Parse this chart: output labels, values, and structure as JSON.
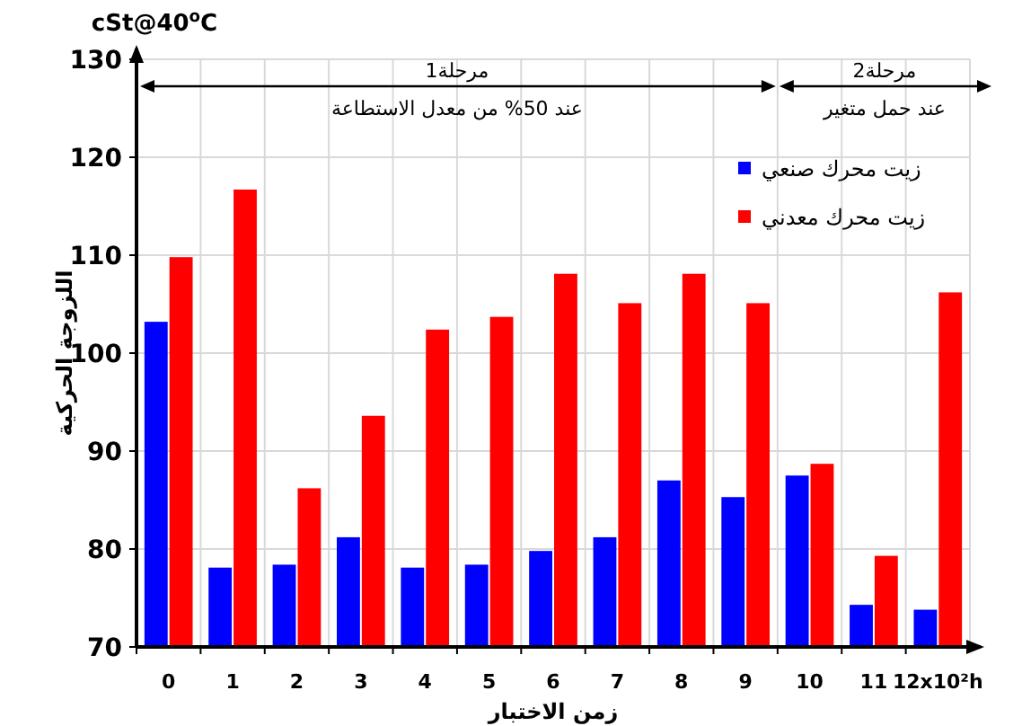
{
  "chart_data": {
    "type": "bar",
    "ylabel": "اللزوجة الحركية",
    "y2label": "cSt@40$^{o}$C",
    "xlabel": "زمن الاختبار",
    "categories": [
      "0",
      "1",
      "2",
      "3",
      "4",
      "5",
      "6",
      "7",
      "8",
      "9",
      "10",
      "11",
      "12x10²h"
    ],
    "series": [
      {
        "name": "زيت محرك صنعي",
        "color": "#0000ff",
        "values": [
          103.2,
          78.1,
          78.4,
          81.2,
          78.1,
          78.4,
          79.8,
          81.2,
          87.0,
          85.3,
          87.5,
          74.3,
          73.8
        ]
      },
      {
        "name": "زيت محرك معدني",
        "color": "#ff0000",
        "values": [
          109.8,
          116.7,
          86.2,
          93.6,
          102.4,
          103.7,
          108.1,
          105.1,
          108.1,
          105.1,
          88.7,
          79.3,
          106.2
        ]
      }
    ],
    "ylim": [
      70,
      130
    ],
    "yticks": [
      70,
      80,
      90,
      100,
      110,
      120,
      130
    ],
    "annotations": [
      "مرحلة1",
      "عند 50% من معدل الاستطاعة",
      "مرحلة2",
      "عند حمل متغير"
    ],
    "grid": true,
    "legend": "top right"
  }
}
